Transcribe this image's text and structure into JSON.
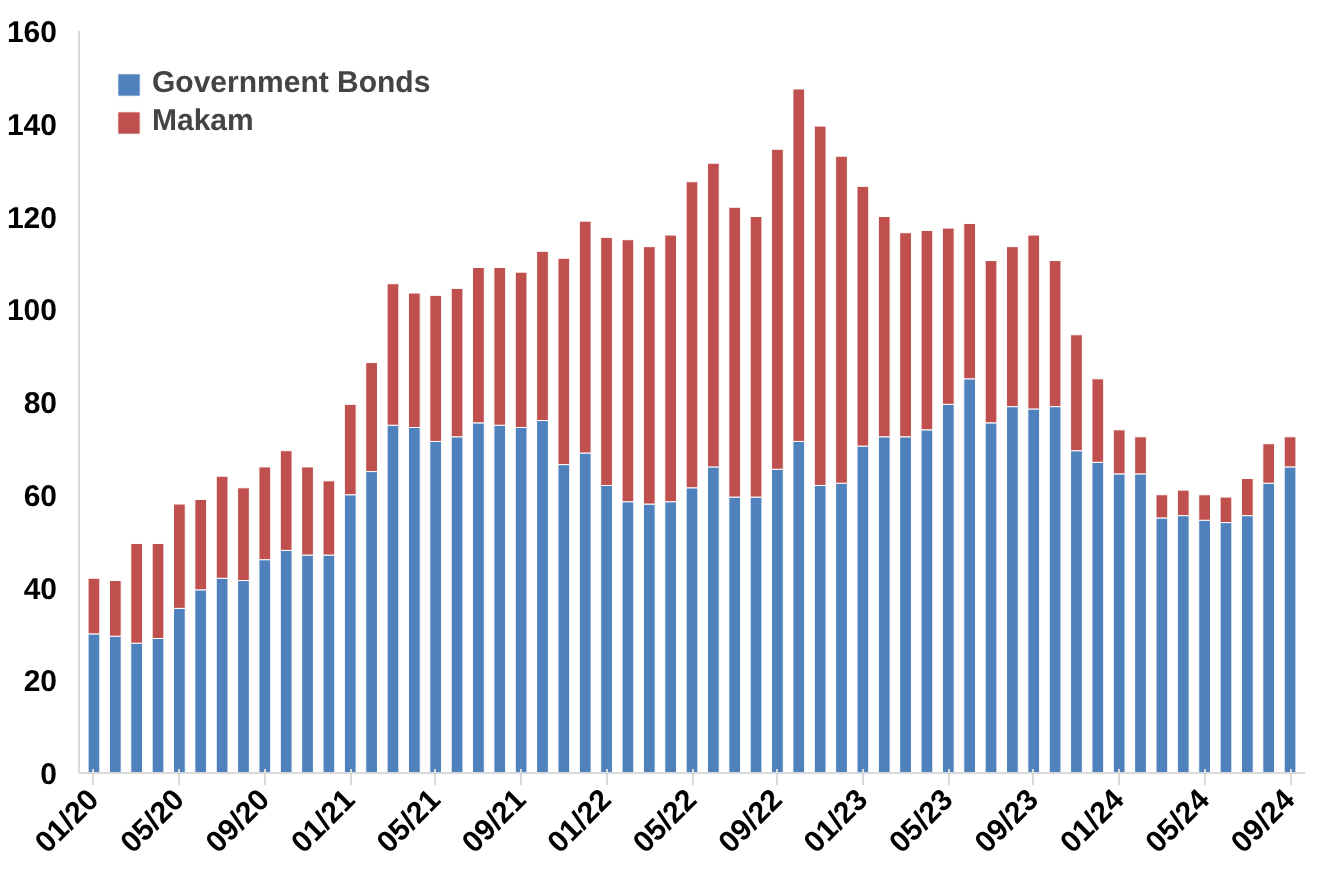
{
  "chart_data": {
    "type": "bar",
    "stacked": true,
    "legend": "top left",
    "grid": false,
    "categories": [
      "01/20",
      null,
      null,
      null,
      "05/20",
      null,
      null,
      null,
      "09/20",
      null,
      null,
      null,
      "01/21",
      null,
      null,
      null,
      "05/21",
      null,
      null,
      null,
      "09/21",
      null,
      null,
      null,
      "01/22",
      null,
      null,
      null,
      "05/22",
      null,
      null,
      null,
      "09/22",
      null,
      null,
      null,
      "01/23",
      null,
      null,
      null,
      "05/23",
      null,
      null,
      null,
      "09/23",
      null,
      null,
      null,
      "01/24",
      null,
      null,
      null,
      "05/24",
      null,
      null,
      null,
      "09/24"
    ],
    "ylim": [
      0,
      160
    ],
    "yticks": [
      0,
      20,
      40,
      60,
      80,
      100,
      120,
      140,
      160
    ],
    "series": [
      {
        "name": "Government Bonds",
        "color": "#4f81bd",
        "values": [
          30,
          29.5,
          28,
          29,
          35.5,
          39.5,
          42,
          41.5,
          46,
          48,
          47,
          47,
          60,
          65,
          75,
          74.5,
          71.5,
          72.5,
          75.5,
          75,
          74.5,
          76,
          66.5,
          69,
          62,
          58.5,
          58,
          58.5,
          61.5,
          66,
          59.5,
          59.5,
          65.5,
          71.5,
          62,
          62.5,
          70.5,
          72.5,
          72.5,
          74,
          79.5,
          85,
          75.5,
          79,
          78.5,
          79,
          69.5,
          67,
          64.5,
          64.5,
          55,
          55.5,
          54.5,
          54,
          55.5,
          62.5,
          66
        ]
      },
      {
        "name": "Makam",
        "color": "#c0504d",
        "values": [
          12,
          12,
          21.5,
          20.5,
          22.5,
          19.5,
          22,
          20,
          20,
          21.5,
          19,
          16,
          19.5,
          23.5,
          30.5,
          29,
          31.5,
          32,
          33.5,
          34,
          33.5,
          36.5,
          44.5,
          50,
          53.5,
          56.5,
          55.5,
          57.5,
          66,
          65.5,
          62.5,
          60.5,
          69,
          76,
          77.5,
          70.5,
          56,
          47.5,
          44,
          43,
          38,
          33.5,
          35,
          34.5,
          37.5,
          31.5,
          25,
          18,
          9.5,
          8,
          5,
          5.5,
          5.5,
          5.5,
          8,
          8.5,
          6.5
        ]
      }
    ]
  }
}
